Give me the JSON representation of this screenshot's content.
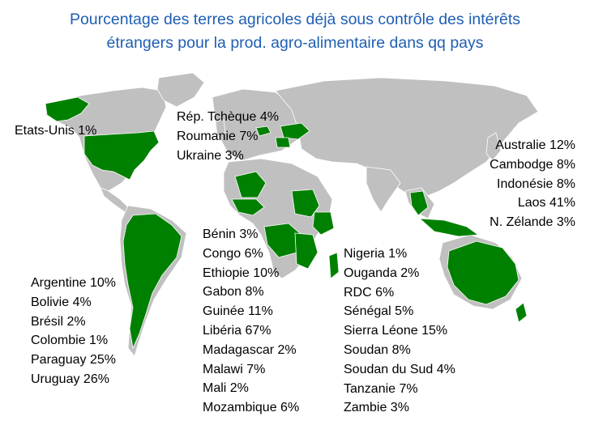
{
  "title": {
    "line1": "Pourcentage des terres agricoles déjà sous contrôle des intérêts",
    "line2": "étrangers pour la prod. agro-alimentaire dans qq pays"
  },
  "map": {
    "base_color": "#c0c0c0",
    "highlight_color": "#008000",
    "border_color": "#ffffff"
  },
  "labels": {
    "usa": "Etats-Unis 1%",
    "europe": [
      "Rép. Tchèque 4%",
      "Roumanie 7%",
      "Ukraine 3%"
    ],
    "asia_pacific": [
      "Australie 12%",
      "Cambodge 8%",
      "Indonésie 8%",
      "Laos 41%",
      "N. Zélande 3%"
    ],
    "south_america": [
      "Argentine 10%",
      "Bolivie 4%",
      "Brésil 2%",
      "Colombie 1%",
      "Paraguay 25%",
      "Uruguay 26%"
    ],
    "africa_col1": [
      "Bénin 3%",
      "Congo 6%",
      "Ethiopie 10%",
      "Gabon 8%",
      "Guinée 11%",
      "Libéria 67%",
      "Madagascar 2%",
      "Malawi 7%",
      "Mali 2%",
      "Mozambique 6%"
    ],
    "africa_col2": [
      "Nigeria 1%",
      "Ouganda 2%",
      "RDC 6%",
      "Sénégal 5%",
      "Sierra Léone 15%",
      "Soudan 8%",
      "Soudan du Sud 4%",
      "Tanzanie 7%",
      "Zambie 3%"
    ]
  }
}
